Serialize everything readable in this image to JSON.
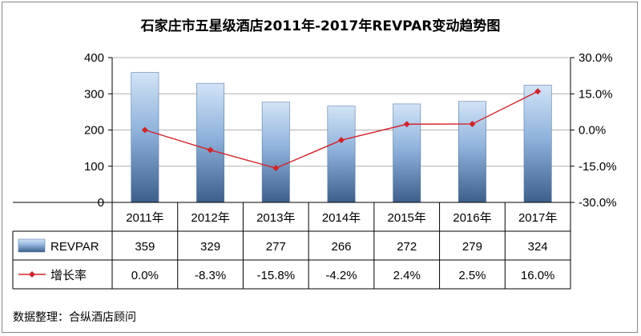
{
  "chart_data": {
    "type": "bar",
    "title": "石家庄市五星级酒店2011年-2017年REVPAR变动趋势图",
    "categories": [
      "2011年",
      "2012年",
      "2013年",
      "2014年",
      "2015年",
      "2016年",
      "2017年"
    ],
    "series": [
      {
        "name": "REVPAR",
        "type": "bar",
        "axis": "left",
        "values": [
          359,
          329,
          277,
          266,
          272,
          279,
          324
        ],
        "labels": [
          "359",
          "329",
          "277",
          "266",
          "272",
          "279",
          "324"
        ]
      },
      {
        "name": "增长率",
        "type": "line",
        "axis": "right",
        "values": [
          0.0,
          -8.3,
          -15.8,
          -4.2,
          2.4,
          2.5,
          16.0
        ],
        "labels": [
          "0.0%",
          "-8.3%",
          "-15.8%",
          "-4.2%",
          "2.4%",
          "2.5%",
          "16.0%"
        ]
      }
    ],
    "y_left": {
      "range": [
        0,
        400
      ],
      "ticks": [
        "0",
        "100",
        "200",
        "300",
        "400"
      ]
    },
    "y_right": {
      "range": [
        -30,
        30
      ],
      "ticks": [
        "30.0%",
        "15.0%",
        "0.0%",
        "-15.0%",
        "-30.0%"
      ]
    },
    "grid": "horizontal",
    "legend": "data-table",
    "colors": {
      "bar_top": "#d2e3f6",
      "bar_bottom": "#3d5f8a",
      "line": "#d2222a",
      "grid": "#b0b0b0"
    }
  },
  "source": "数据整理：合纵酒店顾问"
}
